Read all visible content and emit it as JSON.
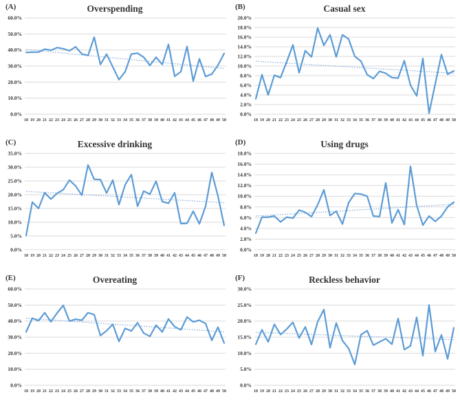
{
  "figure": {
    "background": "#ffffff",
    "line_color": "#5b9bd5",
    "trend_color": "#7fa8d9",
    "grid_color": "#d9d9d9",
    "text_color": "#333333"
  },
  "chart_data": [
    {
      "type": "line",
      "panel_label": "(A)",
      "title": "Overspending",
      "xlabel": "",
      "ylabel": "",
      "grid": true,
      "legend": "none",
      "ylim": [
        0,
        60
      ],
      "ytick_labels": [
        "0.0%",
        "10.0%",
        "20.0%",
        "30.0%",
        "40.0%",
        "50.0%",
        "60.0%"
      ],
      "x": [
        18,
        19,
        20,
        21,
        22,
        23,
        24,
        25,
        26,
        27,
        28,
        29,
        30,
        31,
        32,
        33,
        34,
        35,
        36,
        37,
        38,
        39,
        40,
        41,
        42,
        43,
        44,
        45,
        46,
        47,
        48,
        49,
        50
      ],
      "values": [
        38.5,
        38.6,
        38.7,
        40.5,
        39.8,
        41.5,
        40.8,
        39.5,
        42.0,
        37.5,
        36.6,
        48.0,
        31.0,
        37.4,
        29.5,
        21.5,
        26.5,
        37.5,
        38.0,
        35.5,
        30.4,
        35.5,
        31.0,
        43.5,
        23.6,
        26.5,
        42.2,
        20.6,
        34.5,
        23.5,
        25.0,
        30.5,
        37.9
      ],
      "trend_line": {
        "style": "dotted",
        "start": 40.3,
        "end": 28.5
      }
    },
    {
      "type": "line",
      "panel_label": "(B)",
      "title": "Casual sex",
      "xlabel": "",
      "ylabel": "",
      "grid": true,
      "legend": "none",
      "ylim": [
        0,
        20
      ],
      "ytick_labels": [
        "0.0%",
        "2.0%",
        "4.0%",
        "6.0%",
        "8.0%",
        "10.0%",
        "12.0%",
        "14.0%",
        "16.0%",
        "18.0%",
        "20.0%"
      ],
      "x": [
        18,
        19,
        20,
        21,
        22,
        23,
        24,
        25,
        26,
        27,
        28,
        29,
        30,
        31,
        32,
        33,
        34,
        35,
        36,
        37,
        38,
        39,
        40,
        41,
        42,
        43,
        44,
        45,
        46,
        47,
        48,
        49,
        50
      ],
      "values": [
        3.2,
        8.2,
        4.0,
        8.1,
        7.6,
        10.9,
        14.4,
        8.6,
        13.2,
        11.9,
        17.9,
        14.3,
        16.5,
        11.9,
        16.5,
        15.6,
        12.0,
        11.0,
        8.2,
        7.4,
        8.9,
        8.5,
        7.6,
        7.5,
        11.1,
        6.0,
        3.8,
        11.6,
        0.2,
        6.3,
        12.4,
        8.3,
        9.0
      ],
      "trend_line": {
        "style": "dotted",
        "start": 11.0,
        "end": 8.5
      }
    },
    {
      "type": "line",
      "panel_label": "(C)",
      "title": "Excessive drinking",
      "xlabel": "",
      "ylabel": "",
      "grid": true,
      "legend": "none",
      "ylim": [
        0,
        35
      ],
      "ytick_labels": [
        "0.0%",
        "5.0%",
        "10.0%",
        "15.0%",
        "20.0%",
        "25.0%",
        "30.0%",
        "35.0%"
      ],
      "x": [
        18,
        19,
        20,
        21,
        22,
        23,
        24,
        25,
        26,
        27,
        28,
        29,
        30,
        31,
        32,
        33,
        34,
        35,
        36,
        37,
        38,
        39,
        40,
        41,
        42,
        43,
        44,
        45,
        46,
        47,
        48,
        49,
        50
      ],
      "values": [
        5.2,
        17.3,
        15.0,
        20.7,
        18.4,
        20.5,
        21.8,
        25.3,
        23.2,
        19.8,
        30.8,
        25.6,
        25.5,
        20.6,
        25.3,
        16.4,
        23.6,
        27.3,
        15.8,
        21.3,
        20.2,
        24.9,
        17.5,
        16.9,
        20.7,
        9.5,
        9.6,
        14.0,
        9.4,
        15.8,
        28.1,
        19.5,
        8.8
      ],
      "trend_line": {
        "style": "dotted",
        "start": 21.2,
        "end": 17.1
      }
    },
    {
      "type": "line",
      "panel_label": "(D)",
      "title": "Using drugs",
      "xlabel": "",
      "ylabel": "",
      "grid": true,
      "legend": "none",
      "ylim": [
        0,
        18
      ],
      "ytick_labels": [
        "0.0%",
        "2.0%",
        "4.0%",
        "6.0%",
        "8.0%",
        "10.0%",
        "12.0%",
        "14.0%",
        "16.0%",
        "18.0%"
      ],
      "x": [
        18,
        19,
        20,
        21,
        22,
        23,
        24,
        25,
        26,
        27,
        28,
        29,
        30,
        31,
        32,
        33,
        34,
        35,
        36,
        37,
        38,
        39,
        40,
        41,
        42,
        43,
        44,
        45,
        46,
        47,
        48,
        49,
        50
      ],
      "values": [
        3.1,
        6.1,
        6.1,
        6.3,
        5.2,
        6.1,
        5.9,
        7.4,
        7.0,
        6.2,
        8.4,
        11.2,
        6.4,
        7.2,
        4.8,
        8.8,
        10.5,
        10.4,
        10.0,
        6.3,
        6.2,
        12.5,
        5.0,
        7.5,
        4.7,
        15.6,
        8.3,
        4.6,
        6.3,
        5.3,
        6.3,
        8.0,
        8.9
      ],
      "trend_line": {
        "style": "dotted",
        "start": 6.3,
        "end": 8.5
      }
    },
    {
      "type": "line",
      "panel_label": "(E)",
      "title": "Overeating",
      "xlabel": "",
      "ylabel": "",
      "grid": true,
      "legend": "none",
      "ylim": [
        0,
        60
      ],
      "ytick_labels": [
        "0.0%",
        "10.0%",
        "20.0%",
        "30.0%",
        "40.0%",
        "50.0%",
        "60.0%"
      ],
      "x": [
        18,
        19,
        20,
        21,
        22,
        23,
        24,
        25,
        26,
        27,
        28,
        29,
        30,
        31,
        32,
        33,
        34,
        35,
        36,
        37,
        38,
        39,
        40,
        41,
        42,
        43,
        44,
        45,
        46,
        47,
        48,
        49,
        50
      ],
      "values": [
        33.2,
        41.8,
        40.2,
        45.2,
        39.5,
        45.0,
        49.8,
        40.0,
        41.2,
        40.5,
        45.2,
        44.0,
        31.0,
        34.0,
        38.0,
        27.3,
        35.5,
        33.8,
        39.0,
        32.5,
        30.5,
        37.5,
        33.2,
        41.3,
        36.5,
        34.5,
        42.5,
        39.5,
        40.5,
        38.5,
        28.0,
        36.2,
        26.3
      ],
      "trend_line": {
        "style": "dotted",
        "start": 41.8,
        "end": 33.3
      }
    },
    {
      "type": "line",
      "panel_label": "(F)",
      "title": "Reckless behavior",
      "xlabel": "",
      "ylabel": "",
      "grid": true,
      "legend": "none",
      "ylim": [
        0,
        30
      ],
      "ytick_labels": [
        "0.0%",
        "5.0%",
        "10.0%",
        "15.0%",
        "20.0%",
        "25.0%",
        "30.0%"
      ],
      "x": [
        18,
        19,
        20,
        21,
        22,
        23,
        24,
        25,
        26,
        27,
        28,
        29,
        30,
        31,
        32,
        33,
        34,
        35,
        36,
        37,
        38,
        39,
        40,
        41,
        42,
        43,
        44,
        45,
        46,
        47,
        48,
        49,
        50
      ],
      "values": [
        12.8,
        17.3,
        13.5,
        19.0,
        15.8,
        17.5,
        19.6,
        14.7,
        18.2,
        12.7,
        19.8,
        23.6,
        11.7,
        19.4,
        13.9,
        11.5,
        6.5,
        15.8,
        17.0,
        12.5,
        13.5,
        14.5,
        12.8,
        20.8,
        11.1,
        12.3,
        21.2,
        9.2,
        25.0,
        10.5,
        15.7,
        8.2,
        17.9
      ],
      "trend_line": {
        "style": "dotted",
        "start": 16.5,
        "end": 14.2
      }
    }
  ]
}
